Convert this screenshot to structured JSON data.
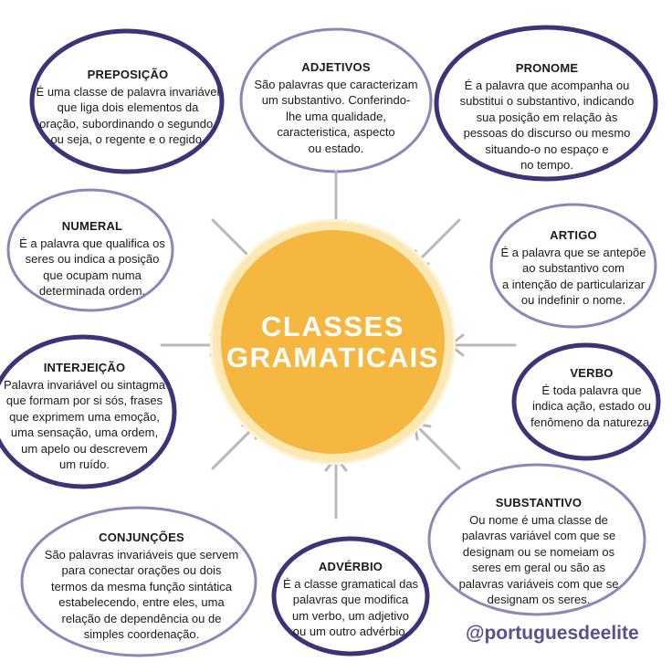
{
  "center": {
    "line1": "CLASSES",
    "line2": "GRAMATICAIS"
  },
  "colors": {
    "ring": "#3b3478",
    "ring_light": "#8c87b8",
    "center": "#f5b73f",
    "arrow": "#b8b8b8",
    "handle": "#5b4f8f"
  },
  "cards": {
    "preposicao": {
      "title": "PREPOSIÇÃO",
      "body": "É uma classe de palavra invariável\nque liga dois elementos da\noração, subordinando o segundo,\nou seja, o regente e o regido."
    },
    "adjetivos": {
      "title": "ADJETIVOS",
      "body": "São palavras que caracterizam\num substantivo. Conferindo-\nlhe uma qualidade,\ncaracteristica, aspecto\nou estado."
    },
    "pronome": {
      "title": "PRONOME",
      "body": "É a palavra que acompanha ou\nsubstitui o substantivo, indicando\nsua posição em relação às\npessoas do discurso ou mesmo\nsituando-o no espaço e\nno tempo."
    },
    "numeral": {
      "title": "NUMERAL",
      "body": "É a palavra que qualifica os\nseres ou indica a posição\nque ocupam numa\ndeterminada ordem."
    },
    "artigo": {
      "title": "ARTIGO",
      "body": "É a palavra que se antepõe\nao substantivo com\na intenção de particularizar\nou indefinir o nome."
    },
    "interjeicao": {
      "title": "INTERJEIÇÃO",
      "body": "Palavra invariável ou sintagma\nque formam por si sós, frases\nque exprimem uma emoção,\numa sensação, uma ordem,\num apelo ou descrevem\num ruído."
    },
    "verbo": {
      "title": "VERBO",
      "body": "É toda palavra que\nindica ação, estado ou\nfenômeno da natureza."
    },
    "substantivo": {
      "title": "SUBSTANTIVO",
      "body": "Ou nome é uma classe de\npalavras variável com que se\ndesignam ou se nomeiam os\nseres em geral ou são as\npalavras variáveis com que se\ndesignam os seres."
    },
    "conjuncoes": {
      "title": "CONJUNÇÕES",
      "body": "São palavras invariáveis que servem\npara conectar orações ou dois\ntermos da mesma função sintática\nestabelecendo, entre eles, uma\nrelação de dependência ou de\nsimples coordenação."
    },
    "adverbio": {
      "title": "ADVÉRBIO",
      "body": "É a classe gramatical das\npalavras que modifica\num verbo, um adjetivo\nou um outro advérbio."
    }
  },
  "handle": "@portuguesdeelite"
}
